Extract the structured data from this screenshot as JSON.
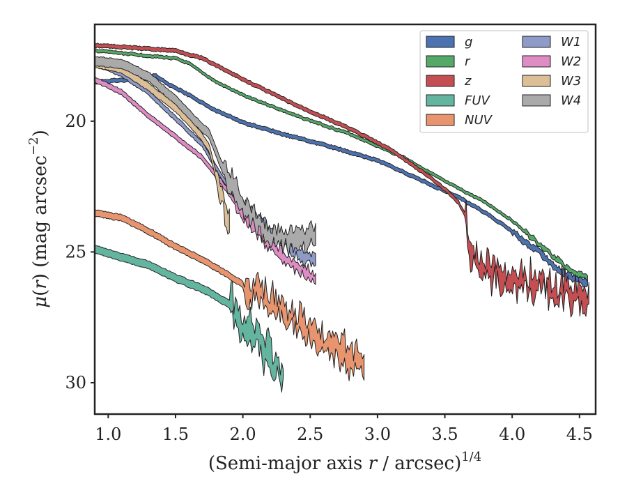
{
  "chart_data": {
    "type": "area",
    "xlabel_main": "(Semi-major axis ",
    "xlabel_var": "r",
    "xlabel_rest": " / arcsec)",
    "xlabel_sup": "1/4",
    "ylabel_mu": "μ",
    "ylabel_open": "(",
    "ylabel_var": "r",
    "ylabel_close": ") (mag arcsec",
    "ylabel_sup": "−2",
    "ylabel_end": ")",
    "xlim": [
      0.9,
      4.62
    ],
    "ylim": [
      31.2,
      16.3
    ],
    "y_inverted": true,
    "xticks": [
      1.0,
      1.5,
      2.0,
      2.5,
      3.0,
      3.5,
      4.0,
      4.5
    ],
    "xtick_labels": [
      "1.0",
      "1.5",
      "2.0",
      "2.5",
      "3.0",
      "3.5",
      "4.0",
      "4.5"
    ],
    "yticks": [
      20,
      25,
      30
    ],
    "ytick_labels": [
      "20",
      "25",
      "30"
    ],
    "grid": false,
    "legend_position": "top-right",
    "legend_columns": 2,
    "series": [
      {
        "name": "g",
        "color": "#4c72b0",
        "band": 0.15,
        "noise_after": 4.0,
        "noise_amp": 0.15,
        "x": [
          0.9,
          1.2,
          1.35,
          1.45,
          1.6,
          1.8,
          2.0,
          2.3,
          2.6,
          3.0,
          3.3,
          3.6,
          3.8,
          4.0,
          4.2,
          4.3,
          4.4,
          4.56
        ],
        "y": [
          18.5,
          18.4,
          18.25,
          18.6,
          19.0,
          19.6,
          20.05,
          20.5,
          20.9,
          21.5,
          22.2,
          22.9,
          23.5,
          24.2,
          25.0,
          25.5,
          25.9,
          26.2
        ]
      },
      {
        "name": "r",
        "color": "#55a868",
        "band": 0.12,
        "noise_after": 4.1,
        "noise_amp": 0.12,
        "x": [
          0.9,
          1.2,
          1.5,
          1.6,
          1.8,
          2.0,
          2.4,
          2.8,
          3.2,
          3.5,
          3.8,
          4.0,
          4.2,
          4.4,
          4.56
        ],
        "y": [
          17.3,
          17.45,
          17.6,
          17.8,
          18.5,
          19.0,
          19.8,
          20.5,
          21.4,
          22.3,
          23.1,
          23.8,
          24.7,
          25.6,
          26.0
        ]
      },
      {
        "name": "z",
        "color": "#c44e52",
        "band": 0.15,
        "noise_after": 3.65,
        "noise_amp": 0.9,
        "x": [
          0.9,
          1.2,
          1.5,
          1.7,
          2.0,
          2.4,
          2.8,
          3.1,
          3.35,
          3.5,
          3.6,
          3.65,
          3.68,
          3.75,
          4.0,
          4.3,
          4.57
        ],
        "y": [
          17.1,
          17.2,
          17.3,
          17.6,
          18.4,
          19.4,
          20.3,
          21.1,
          22.0,
          22.6,
          23.1,
          23.6,
          24.8,
          25.5,
          26.0,
          26.4,
          26.8
        ]
      },
      {
        "name": "FUV",
        "color": "#64b5a0",
        "band": 0.3,
        "noise_after": 1.9,
        "noise_amp": 1.0,
        "x": [
          0.9,
          1.1,
          1.3,
          1.5,
          1.7,
          1.9,
          2.1,
          2.3
        ],
        "y": [
          24.9,
          25.2,
          25.5,
          26.0,
          26.4,
          27.0,
          28.3,
          29.6
        ]
      },
      {
        "name": "NUV",
        "color": "#e8956f",
        "band": 0.25,
        "noise_after": 2.0,
        "noise_amp": 0.8,
        "x": [
          0.9,
          1.1,
          1.3,
          1.5,
          1.7,
          1.9,
          2.1,
          2.3,
          2.5,
          2.7,
          2.9
        ],
        "y": [
          23.5,
          23.7,
          24.2,
          24.8,
          25.3,
          25.9,
          26.6,
          27.3,
          28.0,
          28.7,
          29.3
        ]
      },
      {
        "name": "W1",
        "color": "#8e9ac8",
        "band": 0.2,
        "noise_after": 1.95,
        "noise_amp": 0.3,
        "x": [
          0.9,
          1.1,
          1.3,
          1.5,
          1.7,
          1.85,
          2.0,
          2.2,
          2.4,
          2.54
        ],
        "y": [
          17.8,
          18.2,
          18.9,
          19.9,
          20.9,
          22.2,
          23.2,
          24.2,
          25.0,
          25.4
        ]
      },
      {
        "name": "W2",
        "color": "#dd8cc4",
        "band": 0.2,
        "noise_after": 1.95,
        "noise_amp": 0.3,
        "x": [
          0.9,
          1.1,
          1.3,
          1.5,
          1.7,
          1.85,
          2.0,
          2.2,
          2.4,
          2.54
        ],
        "y": [
          18.4,
          18.9,
          19.8,
          20.6,
          21.4,
          22.4,
          23.5,
          24.7,
          25.6,
          26.0
        ]
      },
      {
        "name": "W3",
        "color": "#dcbf96",
        "band": 0.3,
        "noise_after": 1.8,
        "noise_amp": 0.6,
        "x": [
          0.9,
          1.1,
          1.3,
          1.5,
          1.65,
          1.75,
          1.82,
          1.9
        ],
        "y": [
          17.8,
          18.0,
          18.7,
          19.5,
          20.3,
          21.0,
          22.5,
          23.9
        ]
      },
      {
        "name": "W4",
        "color": "#aaaaaa",
        "band": 0.35,
        "noise_after": 1.85,
        "noise_amp": 0.5,
        "x": [
          0.9,
          1.1,
          1.3,
          1.5,
          1.65,
          1.75,
          1.85,
          2.0,
          2.2,
          2.4,
          2.54
        ],
        "y": [
          17.7,
          17.8,
          18.3,
          19.2,
          20.0,
          20.5,
          21.8,
          23.2,
          24.4,
          24.6,
          24.3
        ]
      }
    ]
  }
}
